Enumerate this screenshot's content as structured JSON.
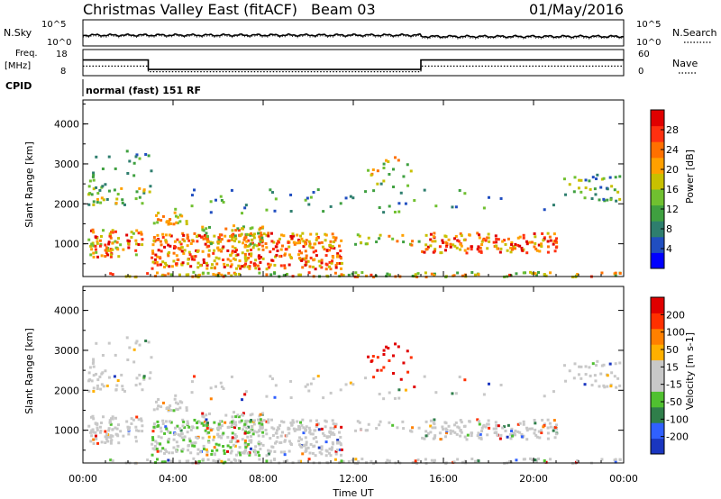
{
  "header": {
    "station": "Christmas Valley East (fitACF)",
    "beam": "Beam 03",
    "date": "01/May/2016"
  },
  "noise_panel": {
    "left_label": "N.Sky",
    "left_ticks": [
      "10^5",
      "10^0"
    ],
    "right_ticks": [
      "10^5",
      "10^0"
    ],
    "right_label": "N.Search"
  },
  "freq_panel": {
    "left_label_top": "Freq.",
    "left_label_bottom": "[MHz]",
    "left_ticks": [
      "18",
      "8"
    ],
    "right_ticks": [
      "60",
      "0"
    ],
    "right_label": "Nave",
    "freq_series": [
      [
        0,
        14
      ],
      [
        2.9,
        14
      ],
      [
        2.9,
        10.4
      ],
      [
        15,
        10.4
      ],
      [
        15,
        14
      ],
      [
        24,
        14
      ]
    ],
    "nave_series": [
      [
        0,
        22
      ],
      [
        2.9,
        22
      ],
      [
        2.9,
        9
      ],
      [
        15,
        9
      ],
      [
        15,
        22
      ],
      [
        24,
        22
      ]
    ]
  },
  "cpid": {
    "label": "CPID",
    "value": "normal (fast) 151 RF"
  },
  "chart_data": [
    {
      "type": "heatmap",
      "name": "power",
      "ylabel": "Slant Range [km]",
      "ylim": [
        180,
        4600
      ],
      "yticks": [
        "1000",
        "2000",
        "3000",
        "4000"
      ],
      "colorbar_label": "Power [dB]",
      "colorbar_ticks": [
        "28",
        "24",
        "20",
        "16",
        "12",
        "8",
        "4"
      ],
      "colors": [
        "#0000ff",
        "#204ec0",
        "#2e7e6e",
        "#3fa040",
        "#70c030",
        "#c8c000",
        "#ffa000",
        "#ff7000",
        "#ff3010",
        "#e00000"
      ]
    },
    {
      "type": "heatmap",
      "name": "velocity",
      "ylabel": "Slant Range [km]",
      "ylim": [
        180,
        4600
      ],
      "yticks": [
        "1000",
        "2000",
        "3000",
        "4000"
      ],
      "colorbar_label": "Velocity [m s-1]",
      "colorbar_ticks": [
        "200",
        "100",
        "50",
        "15",
        "-15",
        "-50",
        "-100",
        "-200"
      ],
      "colors": [
        "#1a36c0",
        "#3060ff",
        "#2f7e4a",
        "#50c030",
        "#c8c8c8",
        "#c8c8c8",
        "#ffb000",
        "#ff8000",
        "#ff3000",
        "#e00000"
      ]
    }
  ],
  "x_axis": {
    "ticks": [
      "00:00",
      "04:00",
      "08:00",
      "12:00",
      "16:00",
      "20:00",
      "00:00"
    ],
    "label": "Time UT"
  }
}
